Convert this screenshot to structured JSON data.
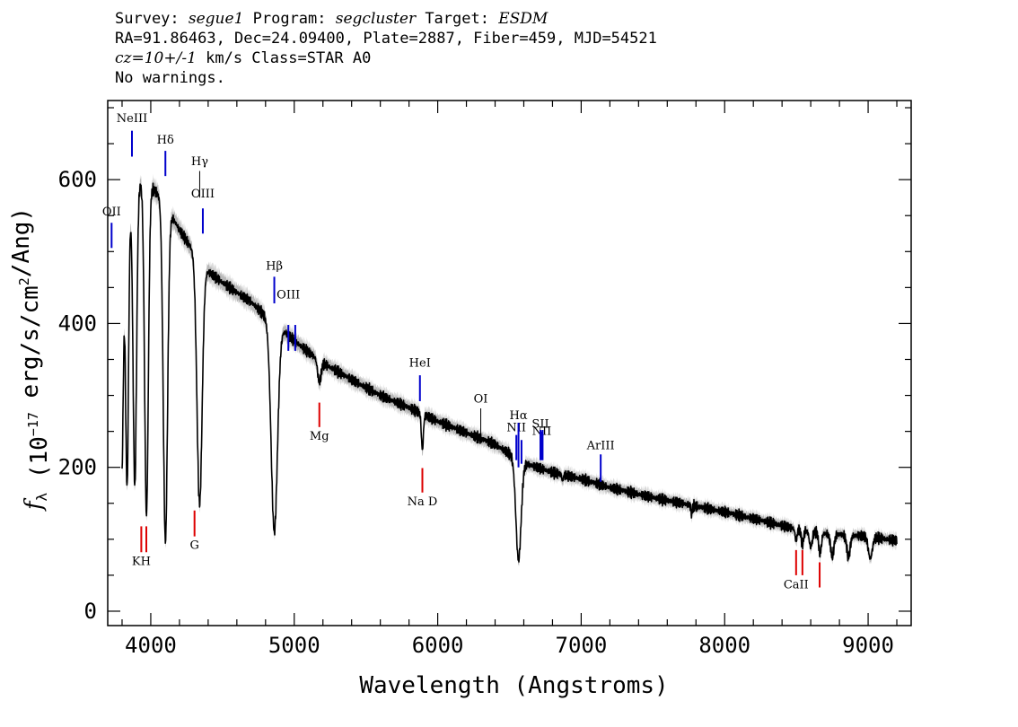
{
  "header": {
    "line1": {
      "survey_label": "Survey: ",
      "survey": "segue1",
      "program_label": " Program: ",
      "program": "segcluster",
      "target_label": " Target: ",
      "target": "ESDM"
    },
    "line2": "RA=91.86463, Dec=24.09400, Plate=2887, Fiber=459, MJD=54521",
    "line3": {
      "cz": "cz=10+/-1",
      "rest": " km/s Class=STAR A0"
    },
    "line4": "No warnings."
  },
  "chart_data": {
    "type": "line",
    "xlabel": "Wavelength (Angstroms)",
    "ylabel": "f_λ (10^-17 erg/s/cm^2/Ang)",
    "xlim": [
      3700,
      9300
    ],
    "ylim": [
      -20,
      710
    ],
    "xticks": [
      4000,
      5000,
      6000,
      7000,
      8000,
      9000
    ],
    "yticks": [
      0,
      200,
      400,
      600
    ],
    "colors": {
      "spectrum": "#000000",
      "error_band": "#b8b8b8",
      "emission": "#0000cc",
      "absorption": "#dd0000"
    },
    "continuum": [
      [
        3800,
        470
      ],
      [
        3850,
        560
      ],
      [
        3900,
        590
      ],
      [
        3950,
        598
      ],
      [
        4000,
        590
      ],
      [
        4050,
        580
      ],
      [
        4100,
        568
      ],
      [
        4150,
        548
      ],
      [
        4200,
        530
      ],
      [
        4300,
        500
      ],
      [
        4400,
        472
      ],
      [
        4500,
        457
      ],
      [
        4600,
        443
      ],
      [
        4700,
        430
      ],
      [
        4800,
        410
      ],
      [
        4900,
        395
      ],
      [
        5000,
        376
      ],
      [
        5100,
        360
      ],
      [
        5200,
        345
      ],
      [
        5400,
        322
      ],
      [
        5600,
        300
      ],
      [
        5800,
        283
      ],
      [
        6000,
        264
      ],
      [
        6200,
        248
      ],
      [
        6400,
        232
      ],
      [
        6600,
        206
      ],
      [
        6800,
        193
      ],
      [
        7000,
        184
      ],
      [
        7200,
        172
      ],
      [
        7500,
        158
      ],
      [
        7800,
        146
      ],
      [
        8000,
        138
      ],
      [
        8300,
        124
      ],
      [
        8500,
        114
      ],
      [
        8700,
        108
      ],
      [
        9000,
        104
      ],
      [
        9200,
        98
      ]
    ],
    "absorption_features": [
      [
        3798,
        10,
        285
      ],
      [
        3835,
        10,
        360
      ],
      [
        3889,
        12,
        410
      ],
      [
        3970,
        13,
        460
      ],
      [
        4102,
        15,
        470
      ],
      [
        4340,
        18,
        340
      ],
      [
        4861,
        22,
        290
      ],
      [
        5175,
        12,
        30
      ],
      [
        5893,
        7,
        50
      ],
      [
        6563,
        18,
        140
      ],
      [
        8498,
        7,
        15
      ],
      [
        8542,
        8,
        20
      ],
      [
        8600,
        10,
        22
      ],
      [
        8665,
        9,
        30
      ],
      [
        8750,
        12,
        30
      ],
      [
        8863,
        12,
        30
      ],
      [
        9015,
        14,
        30
      ],
      [
        7770,
        5,
        12
      ],
      [
        6870,
        5,
        8
      ]
    ],
    "lines": [
      {
        "label": "NeIII",
        "x": 3869,
        "color": "blue",
        "y1": 668,
        "y2": 632,
        "label_y": 680
      },
      {
        "label": "OII",
        "x": 3727,
        "color": "blue",
        "y1": 540,
        "y2": 505,
        "label_y": 550
      },
      {
        "label": "Hδ",
        "x": 4102,
        "color": "blue",
        "y1": 640,
        "y2": 605,
        "label_y": 650
      },
      {
        "label": "Hγ",
        "x": 4341,
        "color": "black",
        "y1": 612,
        "y2": 575,
        "label_y": 620
      },
      {
        "label": "OIII",
        "x": 4363,
        "color": "blue",
        "y1": 560,
        "y2": 525,
        "label_y": 575
      },
      {
        "label": "Hβ",
        "x": 4861,
        "color": "blue",
        "y1": 465,
        "y2": 428,
        "label_y": 475
      },
      {
        "label": "OIII",
        "x": 4959,
        "color": "blue",
        "y1": 398,
        "y2": 362,
        "label_y": 435
      },
      {
        "label": "OIII",
        "x": 5007,
        "color": "blue",
        "y1": 398,
        "y2": 362,
        "label_y": null
      },
      {
        "label": "HeI",
        "x": 5876,
        "color": "blue",
        "y1": 328,
        "y2": 292,
        "label_y": 340
      },
      {
        "label": "OI",
        "x": 6300,
        "color": "black",
        "y1": 282,
        "y2": 245,
        "label_y": 290
      },
      {
        "label": "NII",
        "x": 6548,
        "color": "blue",
        "y1": 245,
        "y2": 210,
        "label_y": 250
      },
      {
        "label": "Hα",
        "x": 6563,
        "color": "blue",
        "y1": 262,
        "y2": 200,
        "label_y": 267
      },
      {
        "label": "NII",
        "x": 6584,
        "color": "blue",
        "y1": 238,
        "y2": 205,
        "label_y": null
      },
      {
        "label": "NII",
        "x": 6725,
        "color": "blue",
        "y1": 250,
        "y2": 210,
        "label_y": 245
      },
      {
        "label": "SII",
        "x": 6716,
        "color": "blue",
        "y1": 252,
        "y2": 210,
        "label_y": 255
      },
      {
        "label": "SII",
        "x": 6731,
        "color": "blue",
        "y1": 252,
        "y2": 210,
        "label_y": null
      },
      {
        "label": "ArIII",
        "x": 7136,
        "color": "blue",
        "y1": 218,
        "y2": 180,
        "label_y": 225
      },
      {
        "label": "Mg",
        "x": 5175,
        "color": "red",
        "y1": 290,
        "y2": 256,
        "label_y": 238
      },
      {
        "label": "Na D",
        "x": 5893,
        "color": "red",
        "y1": 199,
        "y2": 165,
        "label_y": 147
      },
      {
        "label": "KH",
        "x": 3934,
        "color": "red",
        "y1": 118,
        "y2": 82,
        "label_y": 64
      },
      {
        "label": "",
        "x": 3969,
        "color": "red",
        "y1": 118,
        "y2": 82,
        "label_y": null
      },
      {
        "label": "G",
        "x": 4305,
        "color": "red",
        "y1": 140,
        "y2": 104,
        "label_y": 87
      },
      {
        "label": "CaII",
        "x": 8498,
        "color": "red",
        "y1": 85,
        "y2": 50,
        "label_y": 32
      },
      {
        "label": "",
        "x": 8542,
        "color": "red",
        "y1": 85,
        "y2": 50,
        "label_y": null
      },
      {
        "label": "",
        "x": 8662,
        "color": "red",
        "y1": 68,
        "y2": 33,
        "label_y": null
      }
    ]
  }
}
